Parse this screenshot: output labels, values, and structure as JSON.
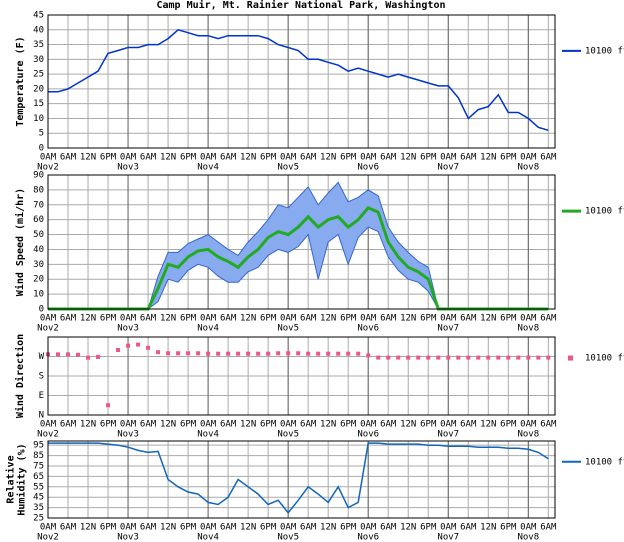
{
  "chart_data": [
    {
      "type": "line",
      "title": "Camp Muir, Mt. Rainier National Park, Washington",
      "ylabel": [
        "Temperature (F)"
      ],
      "xlim": [
        0,
        152
      ],
      "ylim": [
        0,
        45
      ],
      "yticks": [
        0,
        5,
        10,
        15,
        20,
        25,
        30,
        35,
        40,
        45
      ],
      "grid": true,
      "xticks": [
        {
          "value": 0,
          "label": "0AM"
        },
        {
          "value": 6,
          "label": "6AM"
        },
        {
          "value": 12,
          "label": "12N"
        },
        {
          "value": 18,
          "label": "6PM"
        },
        {
          "value": 24,
          "label": "0AM"
        },
        {
          "value": 30,
          "label": "6AM"
        },
        {
          "value": 36,
          "label": "12N"
        },
        {
          "value": 42,
          "label": "6PM"
        },
        {
          "value": 48,
          "label": "0AM"
        },
        {
          "value": 54,
          "label": "6AM"
        },
        {
          "value": 60,
          "label": "12N"
        },
        {
          "value": 66,
          "label": "6PM"
        },
        {
          "value": 72,
          "label": "0AM"
        },
        {
          "value": 78,
          "label": "6AM"
        },
        {
          "value": 84,
          "label": "12N"
        },
        {
          "value": 90,
          "label": "6PM"
        },
        {
          "value": 96,
          "label": "0AM"
        },
        {
          "value": 102,
          "label": "6AM"
        },
        {
          "value": 108,
          "label": "12N"
        },
        {
          "value": 114,
          "label": "6PM"
        },
        {
          "value": 120,
          "label": "0AM"
        },
        {
          "value": 126,
          "label": "6AM"
        },
        {
          "value": 132,
          "label": "12N"
        },
        {
          "value": 138,
          "label": "6PM"
        },
        {
          "value": 144,
          "label": "0AM"
        },
        {
          "value": 150,
          "label": "6AM"
        }
      ],
      "date_ticks": [
        {
          "value": 0,
          "label": "Nov2"
        },
        {
          "value": 24,
          "label": "Nov3"
        },
        {
          "value": 48,
          "label": "Nov4"
        },
        {
          "value": 72,
          "label": "Nov5"
        },
        {
          "value": 96,
          "label": "Nov6"
        },
        {
          "value": 120,
          "label": "Nov7"
        },
        {
          "value": 144,
          "label": "Nov8"
        }
      ],
      "x": [
        0,
        3,
        6,
        9,
        12,
        15,
        18,
        21,
        24,
        27,
        30,
        33,
        36,
        39,
        42,
        45,
        48,
        51,
        54,
        57,
        60,
        63,
        66,
        69,
        72,
        75,
        78,
        81,
        84,
        87,
        90,
        93,
        96,
        99,
        102,
        105,
        108,
        111,
        114,
        117,
        120,
        123,
        126,
        129,
        132,
        135,
        138,
        141,
        144,
        147,
        150
      ],
      "series": [
        {
          "name": "10100 ft",
          "color": "#0033cc",
          "values": [
            19,
            19,
            20,
            22,
            24,
            26,
            32,
            33,
            34,
            34,
            35,
            35,
            37,
            40,
            39,
            38,
            38,
            37,
            38,
            38,
            38,
            38,
            37,
            35,
            34,
            33,
            30,
            30,
            29,
            28,
            26,
            27,
            26,
            25,
            24,
            25,
            24,
            23,
            22,
            21,
            21,
            17,
            10,
            13,
            14,
            18,
            12,
            12,
            10,
            7,
            6
          ]
        }
      ]
    },
    {
      "type": "line",
      "ylabel": [
        "Wind Speed (mi/hr)"
      ],
      "xlim": [
        0,
        152
      ],
      "ylim": [
        0,
        90
      ],
      "yticks": [
        0,
        10,
        20,
        30,
        40,
        50,
        60,
        70,
        80,
        90
      ],
      "grid": true,
      "xticks": [
        {
          "value": 0,
          "label": "0AM"
        },
        {
          "value": 6,
          "label": "6AM"
        },
        {
          "value": 12,
          "label": "12N"
        },
        {
          "value": 18,
          "label": "6PM"
        },
        {
          "value": 24,
          "label": "0AM"
        },
        {
          "value": 30,
          "label": "6AM"
        },
        {
          "value": 36,
          "label": "12N"
        },
        {
          "value": 42,
          "label": "6PM"
        },
        {
          "value": 48,
          "label": "0AM"
        },
        {
          "value": 54,
          "label": "6AM"
        },
        {
          "value": 60,
          "label": "12N"
        },
        {
          "value": 66,
          "label": "6PM"
        },
        {
          "value": 72,
          "label": "0AM"
        },
        {
          "value": 78,
          "label": "6AM"
        },
        {
          "value": 84,
          "label": "12N"
        },
        {
          "value": 90,
          "label": "6PM"
        },
        {
          "value": 96,
          "label": "0AM"
        },
        {
          "value": 102,
          "label": "6AM"
        },
        {
          "value": 108,
          "label": "12N"
        },
        {
          "value": 114,
          "label": "6PM"
        },
        {
          "value": 120,
          "label": "0AM"
        },
        {
          "value": 126,
          "label": "6AM"
        },
        {
          "value": 132,
          "label": "12N"
        },
        {
          "value": 138,
          "label": "6PM"
        },
        {
          "value": 144,
          "label": "0AM"
        },
        {
          "value": 150,
          "label": "6AM"
        }
      ],
      "date_ticks": [
        {
          "value": 0,
          "label": "Nov2"
        },
        {
          "value": 24,
          "label": "Nov3"
        },
        {
          "value": 48,
          "label": "Nov4"
        },
        {
          "value": 72,
          "label": "Nov5"
        },
        {
          "value": 96,
          "label": "Nov6"
        },
        {
          "value": 120,
          "label": "Nov7"
        },
        {
          "value": 144,
          "label": "Nov8"
        }
      ],
      "x": [
        0,
        3,
        6,
        9,
        12,
        15,
        18,
        21,
        24,
        27,
        30,
        33,
        36,
        39,
        42,
        45,
        48,
        51,
        54,
        57,
        60,
        63,
        66,
        69,
        72,
        75,
        78,
        81,
        84,
        87,
        90,
        93,
        96,
        99,
        102,
        105,
        108,
        111,
        114,
        117,
        120,
        123,
        126,
        129,
        132,
        135,
        138,
        141,
        144,
        147,
        150
      ],
      "series": [
        {
          "name": "10100 ft",
          "color": "#22aa22",
          "band_color": "#88aaee",
          "values": [
            0,
            0,
            0,
            0,
            0,
            0,
            0,
            0,
            0,
            0,
            0,
            14,
            30,
            28,
            35,
            39,
            40,
            35,
            32,
            28,
            35,
            40,
            48,
            52,
            50,
            55,
            62,
            55,
            60,
            62,
            55,
            60,
            68,
            65,
            45,
            35,
            28,
            25,
            20,
            0,
            0,
            0,
            0,
            0,
            0,
            0,
            0,
            0,
            0,
            0,
            0
          ],
          "max": [
            0,
            0,
            0,
            0,
            0,
            0,
            0,
            0,
            0,
            0,
            0,
            22,
            38,
            38,
            44,
            47,
            50,
            45,
            40,
            36,
            45,
            52,
            60,
            70,
            68,
            75,
            82,
            70,
            78,
            85,
            72,
            75,
            80,
            76,
            55,
            45,
            38,
            32,
            28,
            0,
            0,
            0,
            0,
            0,
            0,
            0,
            0,
            0,
            0,
            0,
            0
          ],
          "min": [
            0,
            0,
            0,
            0,
            0,
            0,
            0,
            0,
            0,
            0,
            0,
            5,
            20,
            18,
            26,
            30,
            28,
            22,
            18,
            18,
            25,
            28,
            36,
            40,
            38,
            42,
            50,
            20,
            45,
            50,
            30,
            48,
            55,
            52,
            35,
            26,
            20,
            18,
            12,
            0,
            0,
            0,
            0,
            0,
            0,
            0,
            0,
            0,
            0,
            0,
            0
          ]
        }
      ]
    },
    {
      "type": "scatter",
      "ylabel": [
        "Wind Direction"
      ],
      "xlim": [
        0,
        152
      ],
      "ylim": [
        0,
        360
      ],
      "yticks": [
        {
          "value": 270,
          "label": "W"
        },
        {
          "value": 180,
          "label": "S"
        },
        {
          "value": 90,
          "label": "E"
        },
        {
          "value": 0,
          "label": "N"
        }
      ],
      "grid": true,
      "xticks": [
        {
          "value": 0,
          "label": "0AM"
        },
        {
          "value": 6,
          "label": "6AM"
        },
        {
          "value": 12,
          "label": "12N"
        },
        {
          "value": 18,
          "label": "6PM"
        },
        {
          "value": 24,
          "label": "0AM"
        },
        {
          "value": 30,
          "label": "6AM"
        },
        {
          "value": 36,
          "label": "12N"
        },
        {
          "value": 42,
          "label": "6PM"
        },
        {
          "value": 48,
          "label": "0AM"
        },
        {
          "value": 54,
          "label": "6AM"
        },
        {
          "value": 60,
          "label": "12N"
        },
        {
          "value": 66,
          "label": "6PM"
        },
        {
          "value": 72,
          "label": "0AM"
        },
        {
          "value": 78,
          "label": "6AM"
        },
        {
          "value": 84,
          "label": "12N"
        },
        {
          "value": 90,
          "label": "6PM"
        },
        {
          "value": 96,
          "label": "0AM"
        },
        {
          "value": 102,
          "label": "6AM"
        },
        {
          "value": 108,
          "label": "12N"
        },
        {
          "value": 114,
          "label": "6PM"
        },
        {
          "value": 120,
          "label": "0AM"
        },
        {
          "value": 126,
          "label": "6AM"
        },
        {
          "value": 132,
          "label": "12N"
        },
        {
          "value": 138,
          "label": "6PM"
        },
        {
          "value": 144,
          "label": "0AM"
        },
        {
          "value": 150,
          "label": "6AM"
        }
      ],
      "date_ticks": [
        {
          "value": 0,
          "label": "Nov2"
        },
        {
          "value": 24,
          "label": "Nov3"
        },
        {
          "value": 48,
          "label": "Nov4"
        },
        {
          "value": 72,
          "label": "Nov5"
        },
        {
          "value": 96,
          "label": "Nov6"
        },
        {
          "value": 120,
          "label": "Nov7"
        },
        {
          "value": 144,
          "label": "Nov8"
        }
      ],
      "x": [
        0,
        3,
        6,
        9,
        12,
        15,
        18,
        21,
        24,
        27,
        30,
        33,
        36,
        39,
        42,
        45,
        48,
        51,
        54,
        57,
        60,
        63,
        66,
        69,
        72,
        75,
        78,
        81,
        84,
        87,
        90,
        93,
        96,
        99,
        102,
        105,
        108,
        111,
        114,
        117,
        120,
        123,
        126,
        129,
        132,
        135,
        138,
        141,
        144,
        147,
        150
      ],
      "series": [
        {
          "name": "10100 ft",
          "color": "#ee5588",
          "values": [
            280,
            280,
            280,
            278,
            265,
            268,
            45,
            300,
            320,
            325,
            310,
            290,
            285,
            285,
            285,
            285,
            283,
            283,
            283,
            283,
            283,
            283,
            283,
            285,
            285,
            285,
            283,
            283,
            283,
            283,
            283,
            283,
            275,
            265,
            265,
            265,
            265,
            265,
            265,
            265,
            265,
            265,
            265,
            265,
            265,
            265,
            265,
            265,
            265,
            265,
            265
          ]
        }
      ]
    },
    {
      "type": "line",
      "ylabel": [
        "Relative",
        "Humidity (%)"
      ],
      "xlim": [
        0,
        152
      ],
      "ylim": [
        25,
        99
      ],
      "yticks": [
        25,
        35,
        45,
        55,
        65,
        75,
        85,
        95
      ],
      "grid": true,
      "xticks": [
        {
          "value": 0,
          "label": "0AM"
        },
        {
          "value": 6,
          "label": "6AM"
        },
        {
          "value": 12,
          "label": "12N"
        },
        {
          "value": 18,
          "label": "6PM"
        },
        {
          "value": 24,
          "label": "0AM"
        },
        {
          "value": 30,
          "label": "6AM"
        },
        {
          "value": 36,
          "label": "12N"
        },
        {
          "value": 42,
          "label": "6PM"
        },
        {
          "value": 48,
          "label": "0AM"
        },
        {
          "value": 54,
          "label": "6AM"
        },
        {
          "value": 60,
          "label": "12N"
        },
        {
          "value": 66,
          "label": "6PM"
        },
        {
          "value": 72,
          "label": "0AM"
        },
        {
          "value": 78,
          "label": "6AM"
        },
        {
          "value": 84,
          "label": "12N"
        },
        {
          "value": 90,
          "label": "6PM"
        },
        {
          "value": 96,
          "label": "0AM"
        },
        {
          "value": 102,
          "label": "6AM"
        },
        {
          "value": 108,
          "label": "12N"
        },
        {
          "value": 114,
          "label": "6PM"
        },
        {
          "value": 120,
          "label": "0AM"
        },
        {
          "value": 126,
          "label": "6AM"
        },
        {
          "value": 132,
          "label": "12N"
        },
        {
          "value": 138,
          "label": "6PM"
        },
        {
          "value": 144,
          "label": "0AM"
        },
        {
          "value": 150,
          "label": "6AM"
        }
      ],
      "date_ticks": [
        {
          "value": 0,
          "label": "Nov2"
        },
        {
          "value": 24,
          "label": "Nov3"
        },
        {
          "value": 48,
          "label": "Nov4"
        },
        {
          "value": 72,
          "label": "Nov5"
        },
        {
          "value": 96,
          "label": "Nov6"
        },
        {
          "value": 120,
          "label": "Nov7"
        },
        {
          "value": 144,
          "label": "Nov8"
        }
      ],
      "x": [
        0,
        3,
        6,
        9,
        12,
        15,
        18,
        21,
        24,
        27,
        30,
        33,
        36,
        39,
        42,
        45,
        48,
        51,
        54,
        57,
        60,
        63,
        66,
        69,
        72,
        75,
        78,
        81,
        84,
        87,
        90,
        93,
        96,
        99,
        102,
        105,
        108,
        111,
        114,
        117,
        120,
        123,
        126,
        129,
        132,
        135,
        138,
        141,
        144,
        147,
        150
      ],
      "series": [
        {
          "name": "10100 ft",
          "color": "#1166bb",
          "values": [
            97,
            97,
            97,
            97,
            97,
            97,
            96,
            95,
            93,
            90,
            88,
            89,
            62,
            55,
            50,
            48,
            40,
            38,
            45,
            62,
            55,
            48,
            38,
            42,
            30,
            42,
            55,
            48,
            40,
            55,
            35,
            40,
            97,
            97,
            96,
            96,
            96,
            96,
            95,
            95,
            94,
            94,
            94,
            93,
            93,
            93,
            92,
            92,
            91,
            88,
            82
          ]
        }
      ]
    }
  ]
}
